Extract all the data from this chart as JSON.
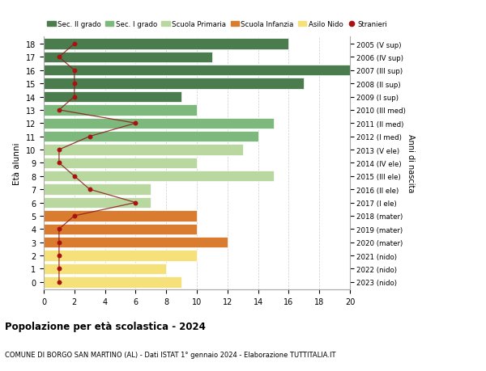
{
  "ages": [
    18,
    17,
    16,
    15,
    14,
    13,
    12,
    11,
    10,
    9,
    8,
    7,
    6,
    5,
    4,
    3,
    2,
    1,
    0
  ],
  "right_labels": [
    "2005 (V sup)",
    "2006 (IV sup)",
    "2007 (III sup)",
    "2008 (II sup)",
    "2009 (I sup)",
    "2010 (III med)",
    "2011 (II med)",
    "2012 (I med)",
    "2013 (V ele)",
    "2014 (IV ele)",
    "2015 (III ele)",
    "2016 (II ele)",
    "2017 (I ele)",
    "2018 (mater)",
    "2019 (mater)",
    "2020 (mater)",
    "2021 (nido)",
    "2022 (nido)",
    "2023 (nido)"
  ],
  "bar_values": [
    16,
    11,
    20,
    17,
    9,
    10,
    15,
    14,
    13,
    10,
    15,
    7,
    7,
    10,
    10,
    12,
    10,
    8,
    9
  ],
  "bar_colors": [
    "#4a7c4e",
    "#4a7c4e",
    "#4a7c4e",
    "#4a7c4e",
    "#4a7c4e",
    "#7db87d",
    "#7db87d",
    "#7db87d",
    "#b8d8a0",
    "#b8d8a0",
    "#b8d8a0",
    "#b8d8a0",
    "#b8d8a0",
    "#d97c30",
    "#d97c30",
    "#d97c30",
    "#f5e07a",
    "#f5e07a",
    "#f5e07a"
  ],
  "stranieri_values": [
    2,
    1,
    2,
    2,
    2,
    1,
    6,
    3,
    1,
    1,
    2,
    3,
    6,
    2,
    1,
    1,
    1,
    1,
    1
  ],
  "legend_labels": [
    "Sec. II grado",
    "Sec. I grado",
    "Scuola Primaria",
    "Scuola Infanzia",
    "Asilo Nido",
    "Stranieri"
  ],
  "legend_colors": [
    "#4a7c4e",
    "#7db87d",
    "#b8d8a0",
    "#d97c30",
    "#f5e07a",
    "#aa1111"
  ],
  "title": "Popolazione per età scolastica - 2024",
  "subtitle": "COMUNE DI BORGO SAN MARTINO (AL) - Dati ISTAT 1° gennaio 2024 - Elaborazione TUTTITALIA.IT",
  "ylabel": "Età alunni",
  "right_ylabel": "Anni di nascita",
  "xlim": [
    0,
    20
  ],
  "xticks": [
    0,
    2,
    4,
    6,
    8,
    10,
    12,
    14,
    16,
    18,
    20
  ],
  "bg_color": "#ffffff",
  "grid_color": "#cccccc"
}
